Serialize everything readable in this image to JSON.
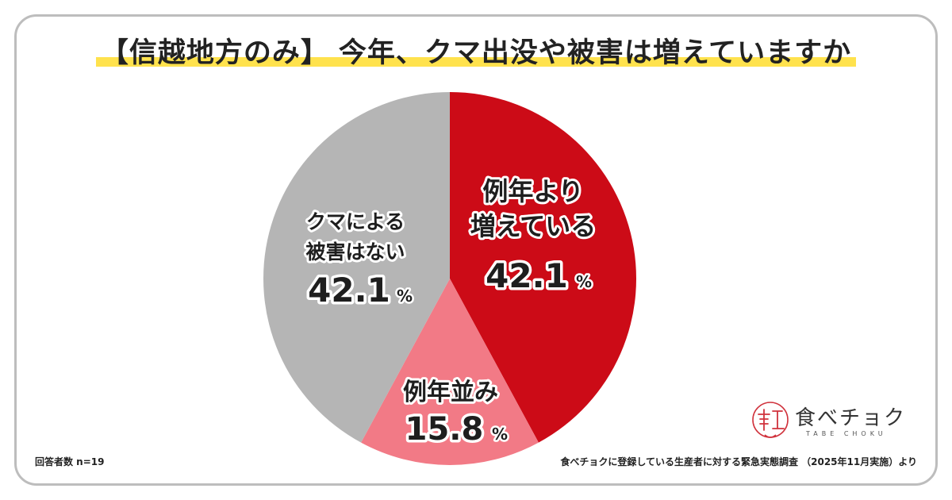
{
  "title": {
    "prefix": "【信越地方のみ】",
    "main": "今年、クマ出没や被害は増えていますか"
  },
  "colors": {
    "highlight": "#ffe24d",
    "series": [
      "#cc0b17",
      "#f27a86",
      "#b5b5b5"
    ],
    "border": "#bdbdbd"
  },
  "chart_data": {
    "type": "pie",
    "title": "【信越地方のみ】今年、クマ出没や被害は増えていますか",
    "unit": "%",
    "start_angle_deg": 0,
    "direction": "clockwise",
    "slices": [
      {
        "label_lines": [
          "例年より",
          "増えている"
        ],
        "value": 42.1,
        "display": "42.1",
        "color": "#cc0b17"
      },
      {
        "label_lines": [
          "例年並み"
        ],
        "value": 15.8,
        "display": "15.8",
        "color": "#f27a86"
      },
      {
        "label_lines": [
          "クマによる",
          "被害はない"
        ],
        "value": 42.1,
        "display": "42.1",
        "color": "#b5b5b5"
      }
    ]
  },
  "footer": {
    "respondents": "回答者数 n=19",
    "source": "食べチョクに登録している生産者に対する緊急実態調査 （2025年11月実施）より"
  },
  "logo": {
    "text": "食べチョク",
    "sub": "TABE CHOKU",
    "mark_icon": "taberu-chokusetsu-logo-icon"
  }
}
